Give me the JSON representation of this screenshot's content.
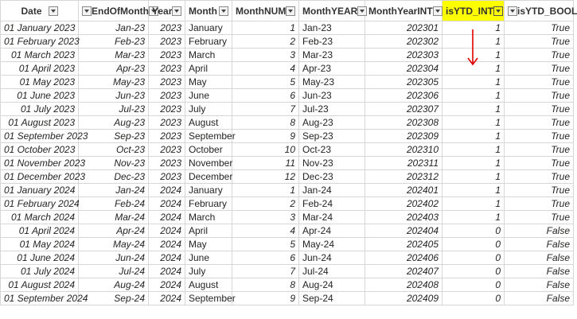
{
  "columns": [
    "Date",
    "EndOfMonth",
    "Year",
    "Month",
    "MonthNUM",
    "MonthYEAR",
    "MonthYearINT",
    "isYTD_INT",
    "isYTD_BOOL"
  ],
  "highlight_color": "#ffff00",
  "arrow_color": "#e00000",
  "rows": [
    [
      "01 January 2023",
      "Jan-23",
      "2023",
      "January",
      "1",
      "Jan-23",
      "202301",
      "1",
      "True"
    ],
    [
      "01 February 2023",
      "Feb-23",
      "2023",
      "February",
      "2",
      "Feb-23",
      "202302",
      "1",
      "True"
    ],
    [
      "01 March 2023",
      "Mar-23",
      "2023",
      "March",
      "3",
      "Mar-23",
      "202303",
      "1",
      "True"
    ],
    [
      "01 April 2023",
      "Apr-23",
      "2023",
      "April",
      "4",
      "Apr-23",
      "202304",
      "1",
      "True"
    ],
    [
      "01 May 2023",
      "May-23",
      "2023",
      "May",
      "5",
      "May-23",
      "202305",
      "1",
      "True"
    ],
    [
      "01 June 2023",
      "Jun-23",
      "2023",
      "June",
      "6",
      "Jun-23",
      "202306",
      "1",
      "True"
    ],
    [
      "01 July 2023",
      "Jul-23",
      "2023",
      "July",
      "7",
      "Jul-23",
      "202307",
      "1",
      "True"
    ],
    [
      "01 August 2023",
      "Aug-23",
      "2023",
      "August",
      "8",
      "Aug-23",
      "202308",
      "1",
      "True"
    ],
    [
      "01 September 2023",
      "Sep-23",
      "2023",
      "September",
      "9",
      "Sep-23",
      "202309",
      "1",
      "True"
    ],
    [
      "01 October 2023",
      "Oct-23",
      "2023",
      "October",
      "10",
      "Oct-23",
      "202310",
      "1",
      "True"
    ],
    [
      "01 November 2023",
      "Nov-23",
      "2023",
      "November",
      "11",
      "Nov-23",
      "202311",
      "1",
      "True"
    ],
    [
      "01 December 2023",
      "Dec-23",
      "2023",
      "December",
      "12",
      "Dec-23",
      "202312",
      "1",
      "True"
    ],
    [
      "01 January 2024",
      "Jan-24",
      "2024",
      "January",
      "1",
      "Jan-24",
      "202401",
      "1",
      "True"
    ],
    [
      "01 February 2024",
      "Feb-24",
      "2024",
      "February",
      "2",
      "Feb-24",
      "202402",
      "1",
      "True"
    ],
    [
      "01 March 2024",
      "Mar-24",
      "2024",
      "March",
      "3",
      "Mar-24",
      "202403",
      "1",
      "True"
    ],
    [
      "01 April 2024",
      "Apr-24",
      "2024",
      "April",
      "4",
      "Apr-24",
      "202404",
      "0",
      "False"
    ],
    [
      "01 May 2024",
      "May-24",
      "2024",
      "May",
      "5",
      "May-24",
      "202405",
      "0",
      "False"
    ],
    [
      "01 June 2024",
      "Jun-24",
      "2024",
      "June",
      "6",
      "Jun-24",
      "202406",
      "0",
      "False"
    ],
    [
      "01 July 2024",
      "Jul-24",
      "2024",
      "July",
      "7",
      "Jul-24",
      "202407",
      "0",
      "False"
    ],
    [
      "01 August 2024",
      "Aug-24",
      "2024",
      "August",
      "8",
      "Aug-24",
      "202408",
      "0",
      "False"
    ],
    [
      "01 September 2024",
      "Sep-24",
      "2024",
      "September",
      "9",
      "Sep-24",
      "202409",
      "0",
      "False"
    ]
  ]
}
